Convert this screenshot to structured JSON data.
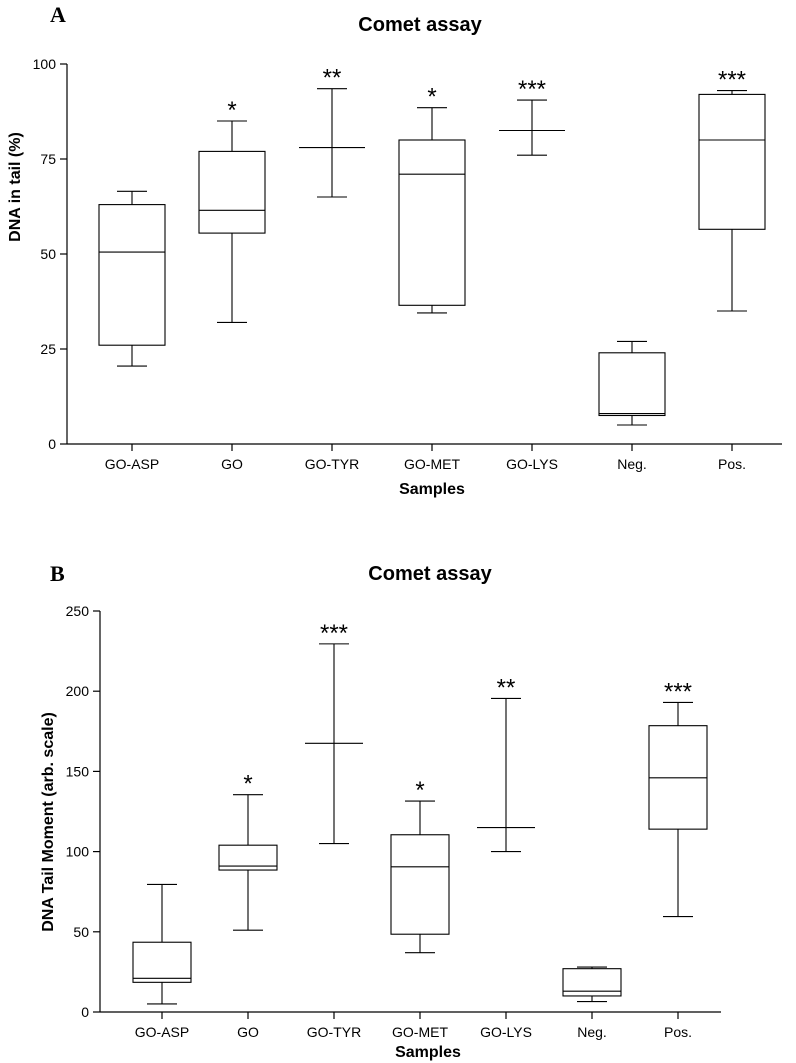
{
  "chart_data": [
    {
      "panel": "A",
      "type": "boxplot",
      "title": "Comet assay",
      "xlabel": "Samples",
      "ylabel": "DNA in tail (%)",
      "ylim": [
        0,
        100
      ],
      "yticks": [
        0,
        25,
        50,
        75,
        100
      ],
      "categories": [
        "GO-ASP",
        "GO",
        "GO-TYR",
        "GO-MET",
        "GO-LYS",
        "Neg.",
        "Pos."
      ],
      "boxes": [
        {
          "min": 20.5,
          "q1": 26,
          "median": 50.5,
          "q3": 63,
          "max": 66.5,
          "sig": ""
        },
        {
          "min": 32,
          "q1": 55.5,
          "median": 61.5,
          "q3": 77,
          "max": 85,
          "sig": "*"
        },
        {
          "min": 65,
          "q1": 78,
          "median": 78,
          "q3": 78,
          "max": 93.5,
          "sig": "**"
        },
        {
          "min": 34.5,
          "q1": 36.5,
          "median": 71,
          "q3": 80,
          "max": 88.5,
          "sig": "*"
        },
        {
          "min": 76,
          "q1": 82.5,
          "median": 82.5,
          "q3": 82.5,
          "max": 90.5,
          "sig": "***"
        },
        {
          "min": 5,
          "q1": 7.5,
          "median": 8,
          "q3": 24,
          "max": 27,
          "sig": ""
        },
        {
          "min": 35,
          "q1": 56.5,
          "median": 80,
          "q3": 92,
          "max": 93,
          "sig": "***"
        }
      ]
    },
    {
      "panel": "B",
      "type": "boxplot",
      "title": "Comet assay",
      "xlabel": "Samples",
      "ylabel": "DNA Tail Moment (arb. scale)",
      "ylim": [
        0,
        250
      ],
      "yticks": [
        0,
        50,
        100,
        150,
        200,
        250
      ],
      "categories": [
        "GO-ASP",
        "GO",
        "GO-TYR",
        "GO-MET",
        "GO-LYS",
        "Neg.",
        "Pos."
      ],
      "boxes": [
        {
          "min": 5,
          "q1": 18.5,
          "median": 21,
          "q3": 43.5,
          "max": 79.5,
          "sig": ""
        },
        {
          "min": 51,
          "q1": 88.5,
          "median": 91,
          "q3": 104,
          "max": 135.5,
          "sig": "*"
        },
        {
          "min": 105,
          "q1": 167.5,
          "median": 167.5,
          "q3": 167.5,
          "max": 229.5,
          "sig": "***"
        },
        {
          "min": 37,
          "q1": 48.5,
          "median": 90.5,
          "q3": 110.5,
          "max": 131.5,
          "sig": "*"
        },
        {
          "min": 100,
          "q1": 115,
          "median": 115,
          "q3": 115,
          "max": 195.5,
          "sig": "**"
        },
        {
          "min": 6.5,
          "q1": 10,
          "median": 13,
          "q3": 27,
          "max": 28,
          "sig": ""
        },
        {
          "min": 59.5,
          "q1": 114,
          "median": 146,
          "q3": 178.5,
          "max": 193,
          "sig": "***"
        }
      ]
    }
  ]
}
